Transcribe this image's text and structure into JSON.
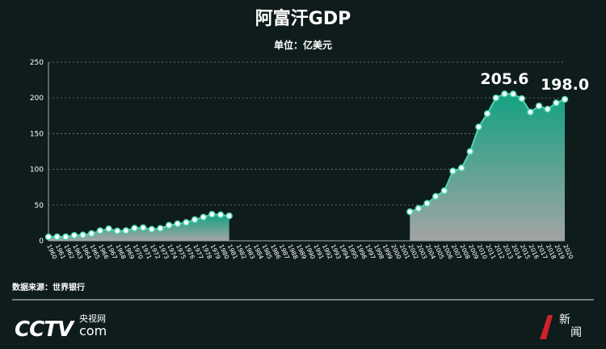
{
  "chart_data": {
    "type": "area",
    "title": "阿富汗GDP",
    "subtitle": "单位：亿美元",
    "categories": [
      "1960",
      "1961",
      "1962",
      "1963",
      "1964",
      "1965",
      "1966",
      "1967",
      "1968",
      "1969",
      "1970",
      "1971",
      "1972",
      "1973",
      "1974",
      "1975",
      "1976",
      "1977",
      "1978",
      "1979",
      "1980",
      "1981",
      "1982",
      "1983",
      "1984",
      "1985",
      "1986",
      "1987",
      "1988",
      "1989",
      "1990",
      "1991",
      "1992",
      "1993",
      "1994",
      "1995",
      "1996",
      "1997",
      "1998",
      "1999",
      "2000",
      "2001",
      "2002",
      "2003",
      "2004",
      "2005",
      "2006",
      "2007",
      "2008",
      "2009",
      "2010",
      "2011",
      "2012",
      "2013",
      "2014",
      "2015",
      "2016",
      "2017",
      "2018",
      "2019",
      "2020"
    ],
    "values": [
      5.4,
      5.5,
      5.5,
      7.5,
      8.0,
      10.1,
      14.0,
      16.7,
      13.7,
      14.1,
      17.5,
      18.3,
      16.0,
      17.3,
      21.6,
      23.7,
      25.6,
      29.5,
      33.0,
      37.0,
      36.4,
      34.8,
      null,
      null,
      null,
      null,
      null,
      null,
      null,
      null,
      null,
      null,
      null,
      null,
      null,
      null,
      null,
      null,
      null,
      null,
      null,
      null,
      40.6,
      45.2,
      52.3,
      62.1,
      70.0,
      97.5,
      101.9,
      124.9,
      159.4,
      178.0,
      200.0,
      205.6,
      205.5,
      199.0,
      180.2,
      188.7,
      184.2,
      193.0,
      198.0
    ],
    "value_labels": [
      null,
      null,
      null,
      null,
      null,
      null,
      null,
      null,
      null,
      null,
      null,
      null,
      null,
      null,
      null,
      null,
      null,
      null,
      null,
      null,
      null,
      null,
      null,
      null,
      null,
      null,
      null,
      null,
      null,
      null,
      null,
      null,
      null,
      null,
      null,
      null,
      null,
      null,
      null,
      null,
      null,
      null,
      null,
      null,
      null,
      null,
      null,
      null,
      null,
      null,
      null,
      null,
      null,
      "205.6",
      null,
      null,
      null,
      null,
      null,
      null,
      "198.0"
    ],
    "color": "#4fd6b0",
    "ylim": [
      0,
      250
    ],
    "yticks": [
      0,
      50,
      100,
      150,
      200,
      250
    ],
    "grid": true,
    "source": "数据来源：世界银行"
  },
  "branding": {
    "logo": "CCTV",
    "domain": "com",
    "site_cn": "央视网",
    "news_1": "新",
    "news_2": "闻"
  }
}
